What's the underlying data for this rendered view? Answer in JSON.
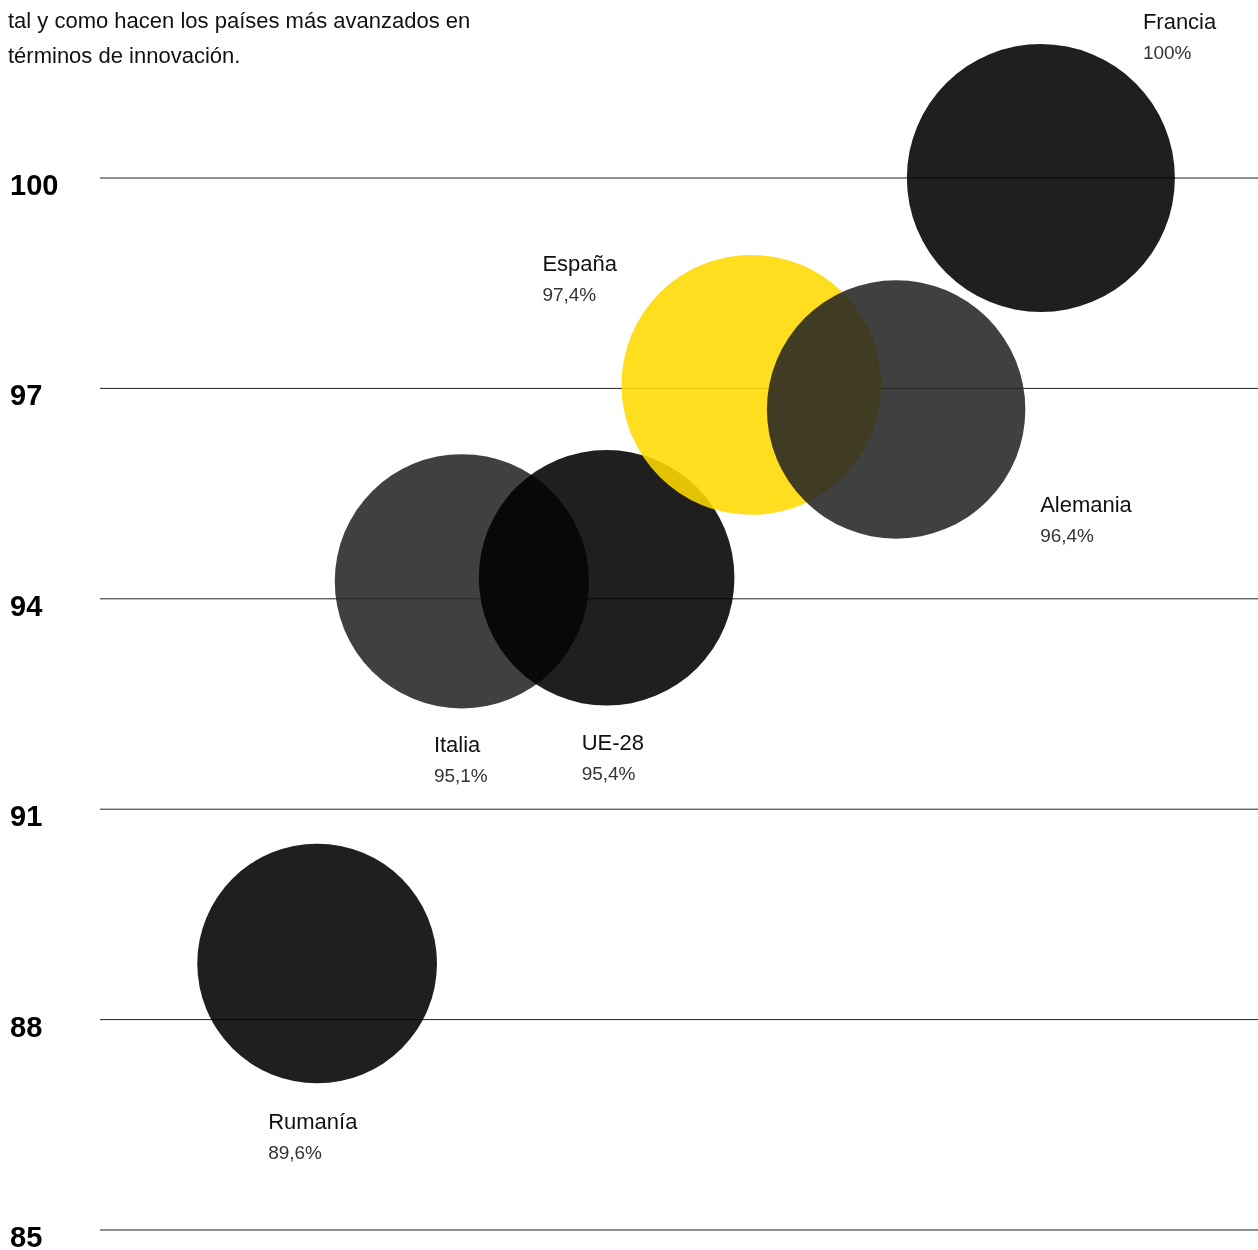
{
  "chart_data": {
    "type": "bubble",
    "title": "tal y como hacen los países más avanzados en términos de innovación.",
    "categories": [
      null,
      null,
      null,
      null,
      null,
      null,
      null,
      null
    ],
    "ylim": [
      85,
      100
    ],
    "yticks": [
      85,
      88,
      91,
      94,
      97,
      100
    ],
    "grid": "y",
    "annotations": [
      "89,6%",
      "95,1%",
      "95,4%",
      "97,4%",
      "96,4%",
      "100%"
    ],
    "series": [
      {
        "name": "Rumanía",
        "color": "#000000",
        "values": [
          null,
          88.8,
          null,
          null,
          null,
          null,
          null,
          null
        ],
        "sizes": [
          null,
          0.8,
          null,
          null,
          null,
          null,
          null,
          null
        ]
      },
      {
        "name": "Italia",
        "color": "#262626",
        "values": [
          null,
          null,
          94.25,
          null,
          null,
          null,
          null,
          null
        ],
        "sizes": [
          null,
          null,
          0.9,
          null,
          null,
          null,
          null,
          null
        ]
      },
      {
        "name": "UE-28",
        "color": "#000000",
        "values": [
          null,
          null,
          null,
          94.3,
          null,
          null,
          null,
          null
        ],
        "sizes": [
          null,
          null,
          null,
          0.91,
          null,
          null,
          null,
          null
        ]
      },
      {
        "name": "España",
        "color": "#ffd800",
        "values": [
          null,
          null,
          null,
          null,
          97.05,
          null,
          null,
          null
        ],
        "sizes": [
          null,
          null,
          null,
          null,
          0.94,
          null,
          null,
          null
        ]
      },
      {
        "name": "Alemania",
        "color": "#262626",
        "values": [
          null,
          null,
          null,
          null,
          null,
          96.7,
          null,
          null
        ],
        "sizes": [
          null,
          null,
          null,
          null,
          null,
          0.93,
          null,
          null
        ]
      },
      {
        "name": "Francia",
        "color": "#000000",
        "values": [
          null,
          null,
          null,
          null,
          null,
          null,
          100,
          null
        ],
        "sizes": [
          null,
          null,
          null,
          null,
          null,
          null,
          1,
          null
        ]
      }
    ]
  }
}
